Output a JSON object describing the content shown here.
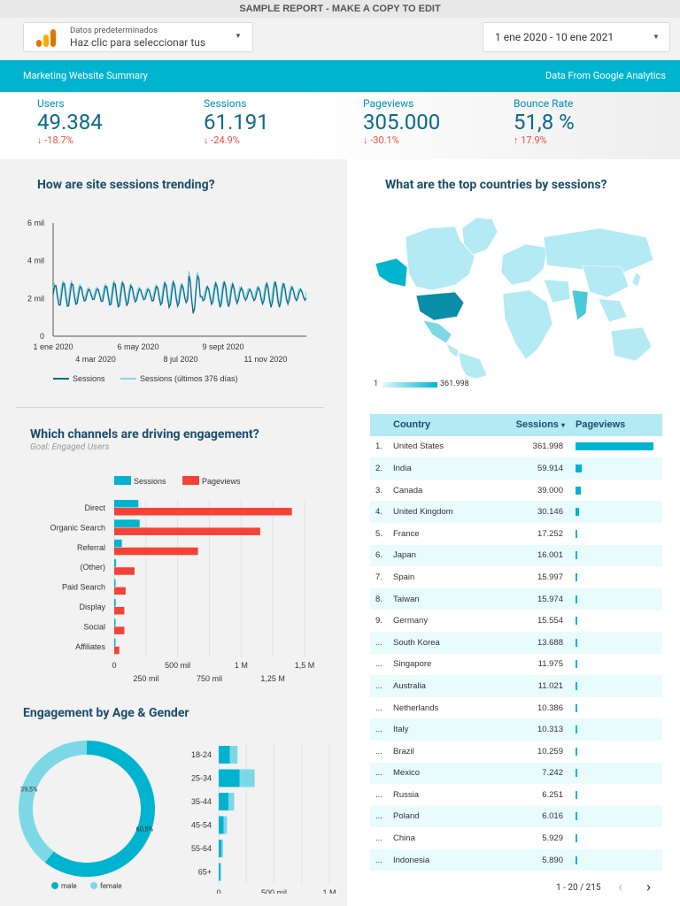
{
  "header": {
    "top_title": "SAMPLE REPORT - MAKE A COPY TO EDIT",
    "data_source_label": "Datos predeterminados",
    "data_source_hint": "Haz clic para seleccionar tus",
    "date_range": "1 ene 2020 - 10 ene 2021"
  },
  "banner": {
    "left": "Marketing Website Summary",
    "right": "Data From Google Analytics"
  },
  "kpis": [
    {
      "label": "Users",
      "value": "49.384",
      "delta": "-18.7%"
    },
    {
      "label": "Sessions",
      "value": "61.191",
      "delta": "-24.9%"
    },
    {
      "label": "Pageviews",
      "value": "305.000",
      "delta": "-30.1%"
    },
    {
      "label": "Bounce Rate",
      "value": "51,8 %",
      "delta": "17.9%"
    }
  ],
  "colors": {
    "teal_dark": "#0b6a8a",
    "teal": "#00b4d0",
    "teal_light": "#7dd8e6",
    "red": "#f44336",
    "kpi_down": "#e84c3d"
  },
  "sessions_trend": {
    "title": "How are site sessions trending?",
    "chart_data": {
      "type": "line",
      "y_ticks": [
        "0",
        "2 mil",
        "4 mil",
        "6 mil"
      ],
      "ylim": [
        0,
        6000
      ],
      "x_ticks_top": [
        "1 ene 2020",
        "6 may 2020",
        "9 sept 2020"
      ],
      "x_ticks_bottom": [
        "4 mar 2020",
        "8 jul 2020",
        "11 nov 2020"
      ],
      "series": [
        {
          "name": "Sessions",
          "color": "#0b6a8a",
          "base": 2200,
          "amplitude": 700
        },
        {
          "name": "Sessions (últimos 376 días)",
          "color": "#7dd8e6",
          "base": 2300,
          "amplitude": 650
        }
      ]
    }
  },
  "channels": {
    "title": "Which channels are driving engagement?",
    "subtitle": "Goal: Engaged Users",
    "chart_data": {
      "type": "bar",
      "orientation": "horizontal",
      "categories": [
        "Direct",
        "Organic Search",
        "Referral",
        "(Other)",
        "Paid Search",
        "Display",
        "Social",
        "Affiliates"
      ],
      "series": [
        {
          "name": "Sessions",
          "color": "#00b4d0",
          "values": [
            190000,
            200000,
            60000,
            15000,
            10000,
            12000,
            10000,
            8000
          ]
        },
        {
          "name": "Pageviews",
          "color": "#f44336",
          "values": [
            1400000,
            1150000,
            660000,
            160000,
            90000,
            80000,
            80000,
            40000
          ]
        }
      ],
      "xlim": [
        0,
        1500000
      ],
      "x_ticks_top": [
        "0",
        "500 mil",
        "1 M",
        "1,5 M"
      ],
      "x_ticks_bottom": [
        "250 mil",
        "750 mil",
        "1,25 M"
      ]
    }
  },
  "age_gender": {
    "title": "Engagement by Age & Gender",
    "donut": {
      "type": "pie",
      "slices": [
        {
          "name": "male",
          "value": 60.5,
          "label": "60,5%",
          "color": "#00b4d0"
        },
        {
          "name": "female",
          "value": 39.5,
          "label": "39,5%",
          "color": "#7dd8e6"
        }
      ]
    },
    "bars": {
      "type": "bar",
      "orientation": "horizontal",
      "categories": [
        "18-24",
        "25-34",
        "35-44",
        "45-54",
        "55-64",
        "65+"
      ],
      "series": [
        {
          "name": "male",
          "color": "#00b4d0",
          "values": [
            100000,
            190000,
            90000,
            45000,
            25000,
            15000
          ]
        },
        {
          "name": "female",
          "color": "#7dd8e6",
          "values": [
            70000,
            135000,
            50000,
            30000,
            15000,
            8000
          ]
        }
      ],
      "xlim": [
        0,
        1000000
      ],
      "x_ticks": [
        "0",
        "500 mil",
        "1 M"
      ]
    }
  },
  "countries_map": {
    "title": "What are the top countries by sessions?",
    "legend_min": "1",
    "legend_max": "361.998"
  },
  "countries_table": {
    "headers": [
      "Country",
      "Sessions",
      "Pageviews"
    ],
    "sort_arrow": "▾",
    "rows": [
      {
        "rank": "1.",
        "country": "United States",
        "sessions": "361.998",
        "bar": 1.0
      },
      {
        "rank": "2.",
        "country": "India",
        "sessions": "59.914",
        "bar": 0.075
      },
      {
        "rank": "3.",
        "country": "Canada",
        "sessions": "39.000",
        "bar": 0.07
      },
      {
        "rank": "4.",
        "country": "United Kingdom",
        "sessions": "30.146",
        "bar": 0.05
      },
      {
        "rank": "5.",
        "country": "France",
        "sessions": "17.252",
        "bar": 0.02
      },
      {
        "rank": "6.",
        "country": "Japan",
        "sessions": "16.001",
        "bar": 0.02
      },
      {
        "rank": "7.",
        "country": "Spain",
        "sessions": "15.997",
        "bar": 0.02
      },
      {
        "rank": "8.",
        "country": "Taiwan",
        "sessions": "15.974",
        "bar": 0.02
      },
      {
        "rank": "9.",
        "country": "Germany",
        "sessions": "15.554",
        "bar": 0.02
      },
      {
        "rank": "...",
        "country": "South Korea",
        "sessions": "13.688",
        "bar": 0.02
      },
      {
        "rank": "...",
        "country": "Singapore",
        "sessions": "11.975",
        "bar": 0.015
      },
      {
        "rank": "...",
        "country": "Australia",
        "sessions": "11.021",
        "bar": 0.015
      },
      {
        "rank": "...",
        "country": "Netherlands",
        "sessions": "10.386",
        "bar": 0.015
      },
      {
        "rank": "...",
        "country": "Italy",
        "sessions": "10.313",
        "bar": 0.015
      },
      {
        "rank": "...",
        "country": "Brazil",
        "sessions": "10.259",
        "bar": 0.015
      },
      {
        "rank": "...",
        "country": "Mexico",
        "sessions": "7.242",
        "bar": 0.012
      },
      {
        "rank": "...",
        "country": "Russia",
        "sessions": "6.251",
        "bar": 0.012
      },
      {
        "rank": "...",
        "country": "Poland",
        "sessions": "6.016",
        "bar": 0.012
      },
      {
        "rank": "...",
        "country": "China",
        "sessions": "5.929",
        "bar": 0.012
      },
      {
        "rank": "...",
        "country": "Indonesia",
        "sessions": "5.890",
        "bar": 0.012
      }
    ],
    "pagination": "1 - 20 / 215"
  }
}
